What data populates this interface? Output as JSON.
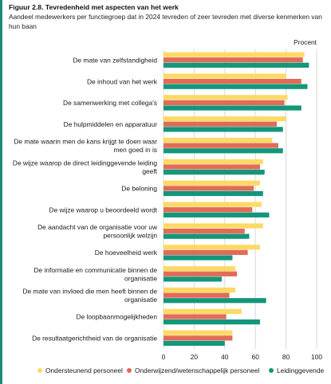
{
  "figure": {
    "title": "Figuur 2.8. Tevredenheid met aspecten van het werk",
    "subtitle": "Aandeel medewerkers per functiegroep dat in 2024 tevreden of zeer tevreden met diverse kenmerken van hun baan"
  },
  "colors": {
    "ondersteunend": "#ffd966",
    "onderwijzend": "#e06c58",
    "leidinggevende": "#13967a",
    "grid": "#d9d9d9",
    "frame": "#1f8a70"
  },
  "chart_data": {
    "type": "bar",
    "orientation": "horizontal",
    "unit_label": "Procent",
    "xlim": [
      0,
      100
    ],
    "x_ticks": [
      0,
      20,
      40,
      60,
      80,
      100
    ],
    "grid": true,
    "legend_position": "bottom",
    "categories": [
      "De mate van zelfstandigheid",
      "De inhoud van het werk",
      "De samenwerking met collega's",
      "De hulpmiddelen en apparatuur",
      "De mate waarin men de kans krijgt te doen waar men goed in is",
      "De wijze waarop de direct leidinggevende leiding geeft",
      "De beloning",
      "De wijze waarop u beoordeeld wordt",
      "De aandacht van de organisatie voor uw persoonlijk welzijn",
      "De hoeveelheid werk",
      "De informatie en communicatie binnen de organisatie",
      "De mate van invloed die men heeft binnen de organisatie",
      "De loopbaanmogelijkheden",
      "De resultaatgerichtheid van de organisatie"
    ],
    "series": [
      {
        "name": "Ondersteunend personeel",
        "color": "#ffd966",
        "values": [
          92,
          80,
          81,
          80,
          71,
          65,
          63,
          64,
          65,
          63,
          47,
          47,
          51,
          45
        ]
      },
      {
        "name": "Onderwijzend/wetenschappelijk personeel",
        "color": "#e06c58",
        "values": [
          91,
          90,
          79,
          74,
          75,
          63,
          59,
          58,
          53,
          55,
          48,
          43,
          41,
          45
        ]
      },
      {
        "name": "Leidinggevende",
        "color": "#13967a",
        "values": [
          95,
          94,
          90,
          78,
          78,
          66,
          65,
          69,
          56,
          45,
          38,
          67,
          63,
          40
        ]
      }
    ]
  }
}
